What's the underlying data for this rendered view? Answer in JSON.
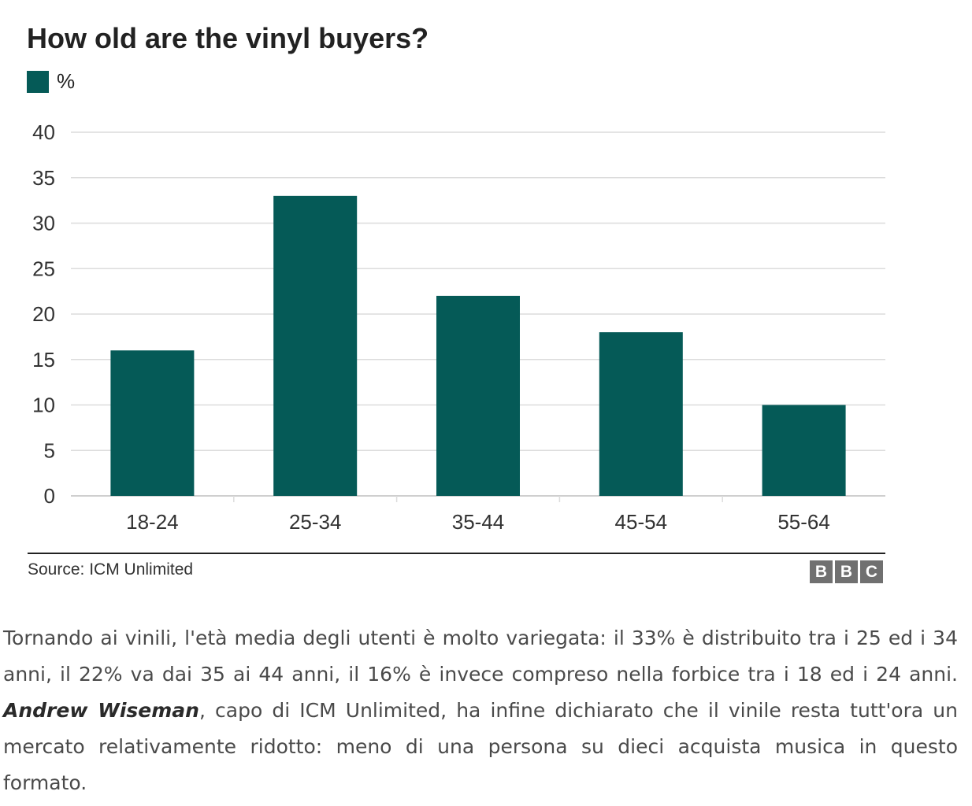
{
  "chart_data": {
    "type": "bar",
    "title": "How old are the vinyl buyers?",
    "xlabel": "",
    "ylabel": "",
    "categories": [
      "18-24",
      "25-34",
      "35-44",
      "45-54",
      "55-64"
    ],
    "series": [
      {
        "name": "%",
        "values": [
          16,
          33,
          22,
          18,
          10
        ],
        "color": "#055a57"
      }
    ],
    "ylim": [
      0,
      40
    ],
    "yticks": [
      0,
      5,
      10,
      15,
      20,
      25,
      30,
      35,
      40
    ],
    "grid": true,
    "legend": "top-left",
    "source": "Source: ICM Unlimited"
  },
  "branding": {
    "logo_letters": [
      "B",
      "B",
      "C"
    ],
    "logo_color": "#707070"
  },
  "article": {
    "text_before_name": "Tornando ai vinili, l'età media degli utenti è molto variegata: il 33% è distribuito tra i 25 ed i 34 anni, il 22% va dai 35 ai 44 anni, il 16% è invece compreso nella forbice tra i 18 ed i 24 anni. ",
    "author_name": "Andrew Wiseman",
    "text_after_name": ", capo di ICM Unlimited, ha infine dichiarato che il vinile resta tutt'ora un mercato relativamente ridotto: meno di una persona su dieci acquista musica in questo formato."
  }
}
